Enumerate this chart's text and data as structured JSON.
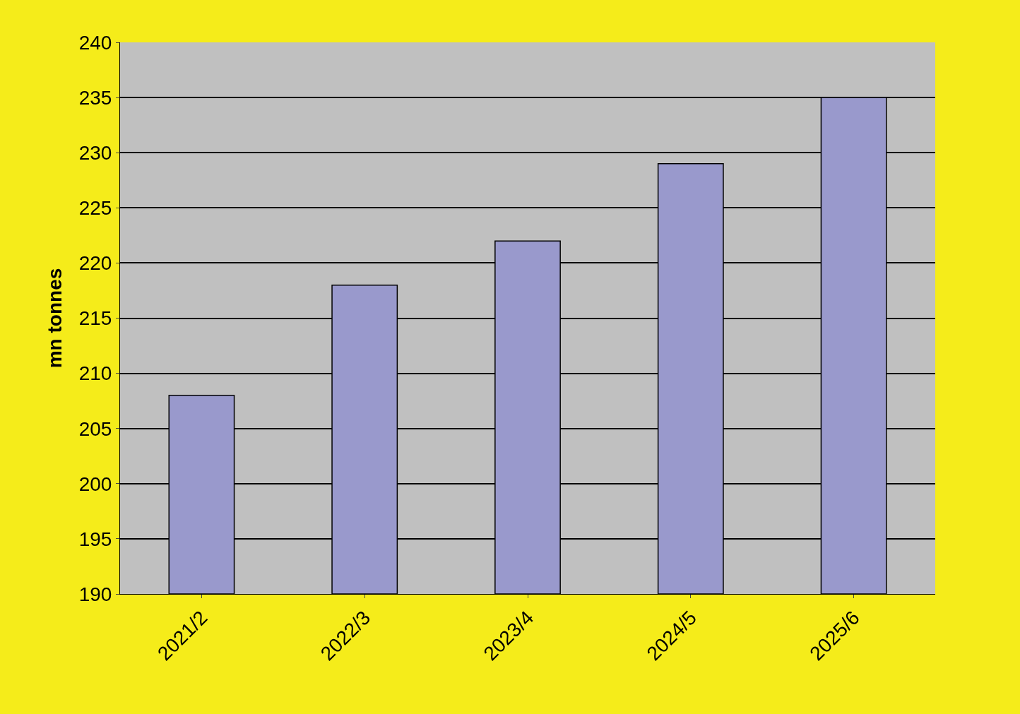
{
  "chart_data": {
    "type": "bar",
    "ylabel": "mn tonnes",
    "categories": [
      "2021/2",
      "2022/3",
      "2023/4",
      "2024/5",
      "2025/6"
    ],
    "values": [
      208,
      218,
      222,
      229,
      235
    ],
    "color": "#9999cc",
    "ylim": [
      190,
      240
    ],
    "yticks": [
      190,
      195,
      200,
      205,
      210,
      215,
      220,
      225,
      230,
      235,
      240
    ],
    "grid": "y",
    "legend": false
  }
}
